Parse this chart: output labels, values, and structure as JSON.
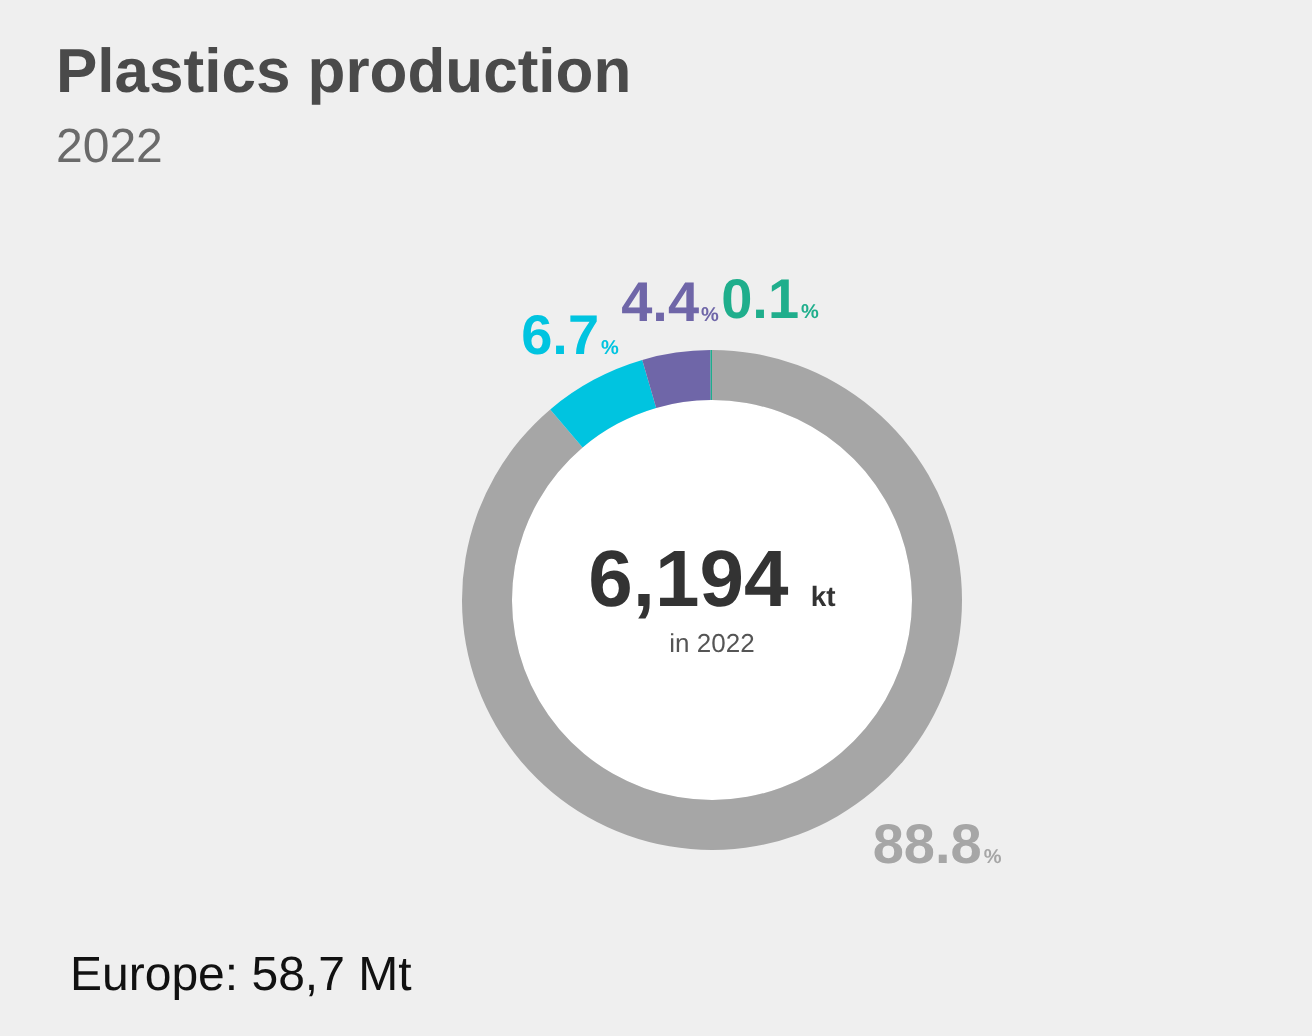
{
  "chart_data": {
    "type": "donut",
    "title": "Plastics production",
    "subtitle": "2022",
    "categories": [
      null,
      null,
      null,
      null
    ],
    "values": [
      88.8,
      6.7,
      4.4,
      0.1
    ],
    "colors": [
      "#a6a6a6",
      "#00c4e0",
      "#6f66a8",
      "#1fae8c"
    ],
    "value_labels": [
      "88.8%",
      "6.7%",
      "4.4%",
      "0.1%"
    ],
    "annotations": [
      "6,194 kt",
      "in 2022",
      "Europe: 58,7 Mt"
    ],
    "legend": false
  }
}
